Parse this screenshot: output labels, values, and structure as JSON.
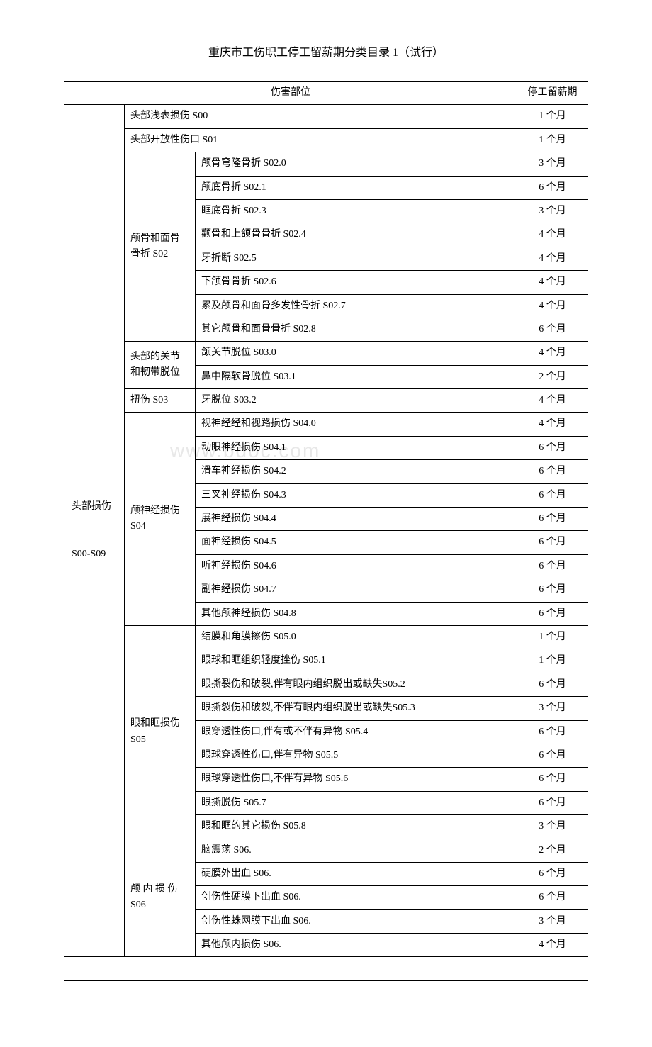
{
  "title": "重庆市工伤职工停工留薪期分类目录 1（试行）",
  "watermark": "www.bdoc.com",
  "headers": {
    "injury_part": "伤害部位",
    "duration": "停工留薪期"
  },
  "category": {
    "main_label": "头部损伤",
    "main_code": "S00-S09"
  },
  "rows": [
    {
      "sub": "",
      "desc": "头部浅表损伤 S00",
      "duration": "1 个月",
      "span_sub": 1,
      "merge_sub": true
    },
    {
      "sub": "",
      "desc": "头部开放性伤口 S01",
      "duration": "1 个月",
      "span_sub": 1,
      "merge_sub": true
    },
    {
      "sub": "颅骨和面骨骨折 S02",
      "desc": "颅骨穹隆骨折 S02.0",
      "duration": "3 个月",
      "span_sub": 8
    },
    {
      "desc": "颅底骨折 S02.1",
      "duration": "6 个月"
    },
    {
      "desc": "眶底骨折 S02.3",
      "duration": "3 个月"
    },
    {
      "desc": "颧骨和上颌骨骨折 S02.4",
      "duration": "4 个月"
    },
    {
      "desc": "牙折断 S02.5",
      "duration": "4 个月"
    },
    {
      "desc": "下颌骨骨折 S02.6",
      "duration": "4 个月"
    },
    {
      "desc": "累及颅骨和面骨多发性骨折 S02.7",
      "duration": "4 个月"
    },
    {
      "desc": "其它颅骨和面骨骨折 S02.8",
      "duration": "6 个月"
    },
    {
      "sub": "头部的关节和韧带脱位",
      "desc": "颌关节脱位 S03.0",
      "duration": "4 个月",
      "span_sub": 2
    },
    {
      "desc": "鼻中隔软骨脱位 S03.1",
      "duration": "2 个月"
    },
    {
      "sub": "扭伤 S03",
      "desc": "牙脱位 S03.2",
      "duration": "4 个月",
      "span_sub": 1
    },
    {
      "sub": "颅神经损伤S04",
      "desc": "视神经经和视路损伤 S04.0",
      "duration": "4 个月",
      "span_sub": 9
    },
    {
      "desc": "动眼神经损伤 S04.1",
      "duration": "6 个月"
    },
    {
      "desc": "滑车神经损伤 S04.2",
      "duration": "6 个月"
    },
    {
      "desc": "三叉神经损伤 S04.3",
      "duration": "6 个月"
    },
    {
      "desc": "展神经损伤 S04.4",
      "duration": "6 个月"
    },
    {
      "desc": "面神经损伤 S04.5",
      "duration": "6 个月"
    },
    {
      "desc": "听神经损伤 S04.6",
      "duration": "6 个月"
    },
    {
      "desc": "副神经损伤 S04.7",
      "duration": "6 个月"
    },
    {
      "desc": "其他颅神经损伤 S04.8",
      "duration": "6 个月"
    },
    {
      "sub": "眼和眶损伤S05",
      "desc": "结膜和角膜擦伤 S05.0",
      "duration": "1 个月",
      "span_sub": 9
    },
    {
      "desc": "眼球和眶组织轻度挫伤 S05.1",
      "duration": "1 个月"
    },
    {
      "desc": "眼撕裂伤和破裂,伴有眼内组织脱出或缺失S05.2",
      "duration": "6 个月"
    },
    {
      "desc": "眼撕裂伤和破裂,不伴有眼内组织脱出或缺失S05.3",
      "duration": "3 个月"
    },
    {
      "desc": "眼穿透性伤口,伴有或不伴有异物 S05.4",
      "duration": "6 个月"
    },
    {
      "desc": "眼球穿透性伤口,伴有异物 S05.5",
      "duration": "6 个月"
    },
    {
      "desc": "眼球穿透性伤口,不伴有异物 S05.6",
      "duration": "6 个月"
    },
    {
      "desc": "眼撕脱伤 S05.7",
      "duration": "6 个月"
    },
    {
      "desc": "眼和眶的其它损伤 S05.8",
      "duration": "3 个月"
    },
    {
      "sub": "颅 内 损 伤S06",
      "desc": "脑震荡 S06.",
      "duration": "2 个月",
      "span_sub": 5
    },
    {
      "desc": "硬膜外出血 S06.",
      "duration": "6 个月"
    },
    {
      "desc": "创伤性硬膜下出血 S06.",
      "duration": "6 个月"
    },
    {
      "desc": "创伤性蛛网膜下出血 S06.",
      "duration": "3 个月"
    },
    {
      "desc": "其他颅内损伤 S06.",
      "duration": "4 个月"
    }
  ],
  "styling": {
    "background_color": "#ffffff",
    "text_color": "#000000",
    "border_color": "#000000",
    "watermark_color": "#e8e8e8",
    "font_family": "SimSun",
    "title_fontsize": 16,
    "body_fontsize": 14
  }
}
